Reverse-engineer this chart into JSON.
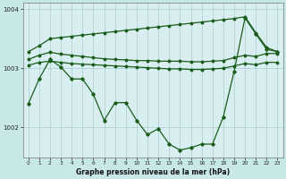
{
  "title": "Graphe pression niveau de la mer (hPa)",
  "background_color": "#c8e8e8",
  "plot_background": "#d8eef0",
  "grid_color": "#aacece",
  "line_color": "#1a5c1a",
  "hours": [
    0,
    1,
    2,
    3,
    4,
    5,
    6,
    7,
    8,
    9,
    10,
    11,
    12,
    13,
    14,
    15,
    16,
    17,
    18,
    19,
    20,
    21,
    22,
    23
  ],
  "line_upper": [
    1003.28,
    1003.38,
    1003.5,
    1003.52,
    1003.54,
    1003.56,
    1003.58,
    1003.6,
    1003.62,
    1003.64,
    1003.66,
    1003.68,
    1003.7,
    1003.72,
    1003.74,
    1003.76,
    1003.78,
    1003.8,
    1003.82,
    1003.84,
    1003.87,
    1003.6,
    1003.35,
    1003.28
  ],
  "line_mid_high": [
    1003.15,
    1003.22,
    1003.27,
    1003.24,
    1003.22,
    1003.2,
    1003.18,
    1003.16,
    1003.15,
    1003.14,
    1003.13,
    1003.13,
    1003.12,
    1003.12,
    1003.12,
    1003.11,
    1003.11,
    1003.12,
    1003.13,
    1003.18,
    1003.22,
    1003.2,
    1003.25,
    1003.25
  ],
  "line_mid_low": [
    1003.05,
    1003.1,
    1003.12,
    1003.1,
    1003.08,
    1003.07,
    1003.06,
    1003.05,
    1003.04,
    1003.03,
    1003.02,
    1003.01,
    1003.0,
    1002.99,
    1002.99,
    1002.98,
    1002.98,
    1002.99,
    1003.0,
    1003.04,
    1003.08,
    1003.06,
    1003.1,
    1003.1
  ],
  "line_main": [
    1002.4,
    1002.82,
    1003.15,
    1003.02,
    1002.82,
    1002.82,
    1002.56,
    1002.12,
    1002.42,
    1002.42,
    1002.12,
    1001.88,
    1001.98,
    1001.72,
    1001.62,
    1001.66,
    1001.72,
    1001.72,
    1002.18,
    1002.95,
    1003.85,
    1003.58,
    1003.32,
    1003.28
  ],
  "ylim": [
    1001.5,
    1004.1
  ],
  "yticks": [
    1002,
    1003,
    1004
  ],
  "xlabel": "Graphe pression niveau de la mer (hPa)"
}
